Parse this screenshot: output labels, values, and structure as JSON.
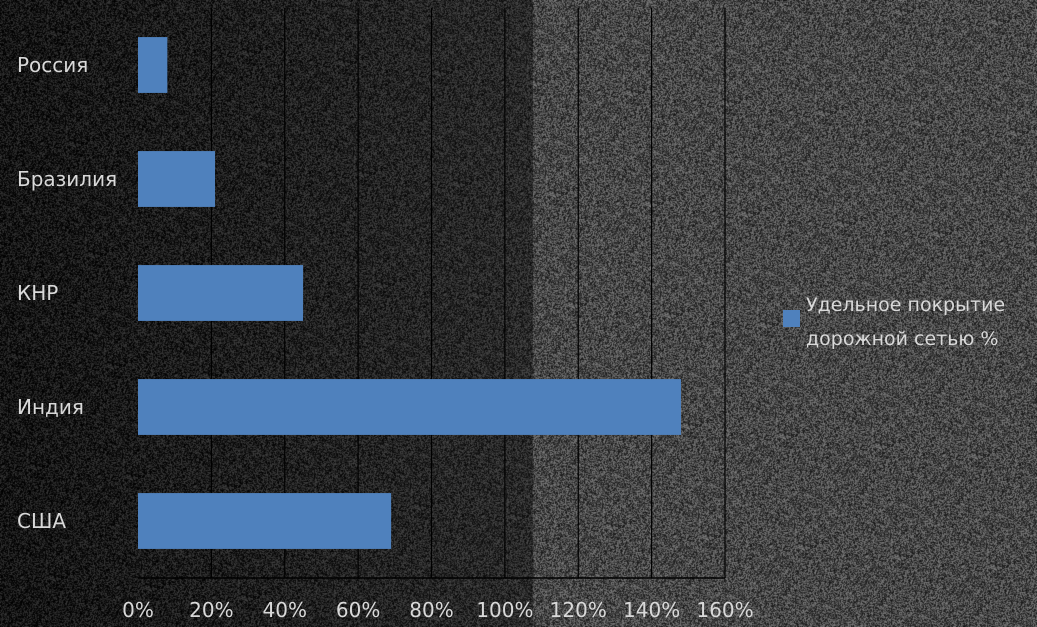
{
  "chart_data": {
    "type": "bar",
    "orientation": "horizontal",
    "categories": [
      "Россия",
      "Бразилия",
      "КНР",
      "Индия",
      "США"
    ],
    "series": [
      {
        "name": "Удельное покрытие дорожной сетью %",
        "values": [
          8,
          21,
          45,
          148,
          69
        ],
        "color": "#4f81bd"
      }
    ],
    "xlim": [
      0,
      160
    ],
    "x_ticks": [
      0,
      20,
      40,
      60,
      80,
      100,
      120,
      140,
      160
    ],
    "x_tick_labels": [
      "0%",
      "20%",
      "40%",
      "60%",
      "80%",
      "100%",
      "120%",
      "140%",
      "160%"
    ],
    "grid": true,
    "legend_position": "right",
    "legend_lines": [
      "Удельное покрытие",
      "дорожной сетью %"
    ]
  },
  "colors": {
    "bar": "#4f81bd",
    "text": "#d9d9d9",
    "grid": "#000000",
    "background_left": "#262626",
    "background_right": "#4a4a4a"
  }
}
